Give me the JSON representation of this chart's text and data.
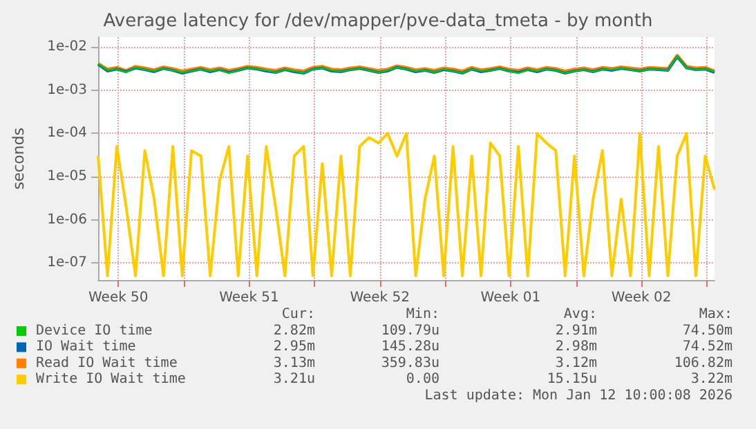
{
  "chart_data": {
    "type": "line",
    "title": "Average latency for /dev/mapper/pve-data_tmeta - by month",
    "ylabel": "seconds",
    "log": "y",
    "grid": true,
    "legend": "bottom left",
    "marker": "none",
    "line_style": "solid",
    "xlim": [
      "2025-12-10T10:00",
      "2026-01-12T10:00"
    ],
    "xticks": [
      {
        "value": "2025-12-11T12:00",
        "label": "Week 50"
      },
      {
        "value": "2025-12-15",
        "label": null
      },
      {
        "value": "2025-12-18T12:00",
        "label": "Week 51"
      },
      {
        "value": "2025-12-22",
        "label": null
      },
      {
        "value": "2025-12-25T12:00",
        "label": "Week 52"
      },
      {
        "value": "2025-12-29",
        "label": null
      },
      {
        "value": "2026-01-01T12:00",
        "label": "Week 01"
      },
      {
        "value": "2026-01-05",
        "label": null
      },
      {
        "value": "2026-01-08T12:00",
        "label": "Week 02"
      },
      {
        "value": "2026-01-12",
        "label": null
      }
    ],
    "ylim": [
      4e-08,
      0.017
    ],
    "yticks": [
      {
        "value": 1e-07,
        "label": "1e-07"
      },
      {
        "value": 1e-06,
        "label": "1e-06"
      },
      {
        "value": 1e-05,
        "label": "1e-05"
      },
      {
        "value": 0.0001,
        "label": "1e-04"
      },
      {
        "value": 0.001,
        "label": "1e-03"
      },
      {
        "value": 0.01,
        "label": "1e-02"
      }
    ],
    "x": [
      "2025-12-10T10:00",
      "2025-12-10T22:00",
      "2025-12-11T10:00",
      "2025-12-11T22:00",
      "2025-12-12T10:00",
      "2025-12-12T22:00",
      "2025-12-13T10:00",
      "2025-12-13T22:00",
      "2025-12-14T10:00",
      "2025-12-14T22:00",
      "2025-12-15T10:00",
      "2025-12-15T22:00",
      "2025-12-16T10:00",
      "2025-12-16T22:00",
      "2025-12-17T10:00",
      "2025-12-17T22:00",
      "2025-12-18T10:00",
      "2025-12-18T22:00",
      "2025-12-19T10:00",
      "2025-12-19T22:00",
      "2025-12-20T10:00",
      "2025-12-20T22:00",
      "2025-12-21T10:00",
      "2025-12-21T22:00",
      "2025-12-22T10:00",
      "2025-12-22T22:00",
      "2025-12-23T10:00",
      "2025-12-23T22:00",
      "2025-12-24T10:00",
      "2025-12-24T22:00",
      "2025-12-25T10:00",
      "2025-12-25T22:00",
      "2025-12-26T10:00",
      "2025-12-26T22:00",
      "2025-12-27T10:00",
      "2025-12-27T22:00",
      "2025-12-28T10:00",
      "2025-12-28T22:00",
      "2025-12-29T10:00",
      "2025-12-29T22:00",
      "2025-12-30T10:00",
      "2025-12-30T22:00",
      "2025-12-31T10:00",
      "2025-12-31T22:00",
      "2026-01-01T10:00",
      "2026-01-01T22:00",
      "2026-01-02T10:00",
      "2026-01-02T22:00",
      "2026-01-03T10:00",
      "2026-01-03T22:00",
      "2026-01-04T10:00",
      "2026-01-04T22:00",
      "2026-01-05T10:00",
      "2026-01-05T22:00",
      "2026-01-06T10:00",
      "2026-01-06T22:00",
      "2026-01-07T10:00",
      "2026-01-07T22:00",
      "2026-01-08T10:00",
      "2026-01-08T22:00",
      "2026-01-09T10:00",
      "2026-01-09T22:00",
      "2026-01-10T10:00",
      "2026-01-10T22:00",
      "2026-01-11T10:00",
      "2026-01-11T22:00",
      "2026-01-12T10:00"
    ],
    "series": [
      {
        "name": "Device IO time",
        "color": "#00cc00",
        "values": [
          0.0041,
          0.0029,
          0.0031,
          0.0026,
          0.0034,
          0.003,
          0.0028,
          0.0032,
          0.0029,
          0.0026,
          0.0028,
          0.0031,
          0.0028,
          0.003,
          0.0025,
          0.0029,
          0.0033,
          0.0031,
          0.0029,
          0.0026,
          0.003,
          0.0028,
          0.0025,
          0.0031,
          0.0033,
          0.0029,
          0.0027,
          0.003,
          0.0032,
          0.0029,
          0.0026,
          0.0029,
          0.0034,
          0.0031,
          0.0028,
          0.0029,
          0.0026,
          0.0031,
          0.0028,
          0.0025,
          0.0031,
          0.0028,
          0.0029,
          0.0032,
          0.0028,
          0.0025,
          0.003,
          0.0028,
          0.0031,
          0.0029,
          0.0025,
          0.0028,
          0.003,
          0.0027,
          0.0031,
          0.003,
          0.0032,
          0.003,
          0.0028,
          0.0031,
          0.003,
          0.0029,
          0.0061,
          0.0033,
          0.003,
          0.0031,
          0.0027
        ]
      },
      {
        "name": "IO Wait time",
        "color": "#0066b3",
        "values": [
          0.004,
          0.0028,
          0.0031,
          0.0027,
          0.0033,
          0.003,
          0.0027,
          0.0032,
          0.0029,
          0.0025,
          0.0028,
          0.0031,
          0.0027,
          0.003,
          0.0026,
          0.0029,
          0.0033,
          0.0031,
          0.0028,
          0.0026,
          0.003,
          0.0027,
          0.0025,
          0.0031,
          0.0033,
          0.0028,
          0.0027,
          0.003,
          0.0032,
          0.0029,
          0.0026,
          0.0028,
          0.0034,
          0.0031,
          0.0027,
          0.0029,
          0.0026,
          0.003,
          0.0028,
          0.0025,
          0.0031,
          0.0027,
          0.0029,
          0.0032,
          0.0028,
          0.0026,
          0.003,
          0.0027,
          0.0031,
          0.0029,
          0.0025,
          0.0028,
          0.003,
          0.0027,
          0.0031,
          0.0029,
          0.0032,
          0.003,
          0.0028,
          0.0031,
          0.003,
          0.0029,
          0.006,
          0.0033,
          0.003,
          0.0031,
          0.0026
        ]
      },
      {
        "name": "Read IO Wait time",
        "color": "#ff8000",
        "values": [
          0.0042,
          0.0031,
          0.0034,
          0.0029,
          0.0036,
          0.0033,
          0.003,
          0.0035,
          0.0032,
          0.0028,
          0.0031,
          0.0034,
          0.003,
          0.0033,
          0.0029,
          0.0032,
          0.0036,
          0.0034,
          0.0031,
          0.0029,
          0.0033,
          0.003,
          0.0028,
          0.0034,
          0.0036,
          0.0031,
          0.003,
          0.0033,
          0.0035,
          0.0032,
          0.0029,
          0.0031,
          0.0037,
          0.0034,
          0.003,
          0.0032,
          0.0029,
          0.0033,
          0.0031,
          0.0028,
          0.0034,
          0.003,
          0.0032,
          0.0035,
          0.0031,
          0.0029,
          0.0033,
          0.003,
          0.0034,
          0.0032,
          0.0028,
          0.0031,
          0.0033,
          0.003,
          0.0034,
          0.0032,
          0.0035,
          0.0033,
          0.0031,
          0.0034,
          0.0033,
          0.0032,
          0.0065,
          0.0036,
          0.0033,
          0.0034,
          0.0028
        ]
      },
      {
        "name": "Write IO Wait time",
        "color": "#ffcc00",
        "values": [
          3e-05,
          5e-08,
          5e-05,
          2e-06,
          5e-08,
          4e-05,
          3e-06,
          5e-08,
          5e-05,
          5e-08,
          4e-05,
          3e-05,
          5e-08,
          8e-06,
          5e-05,
          5e-08,
          3e-05,
          5e-08,
          5e-05,
          2e-06,
          5e-08,
          3e-05,
          5e-05,
          5e-08,
          2e-05,
          5e-08,
          3e-05,
          5e-08,
          5e-05,
          8e-05,
          6e-05,
          0.0001,
          3e-05,
          0.0001,
          5e-08,
          3e-06,
          3e-05,
          5e-08,
          5e-05,
          5e-08,
          3e-05,
          5e-08,
          6e-05,
          3e-05,
          5e-08,
          5e-05,
          5e-08,
          0.0001,
          6e-05,
          4e-05,
          5e-08,
          3e-05,
          5e-08,
          3e-06,
          4e-05,
          5e-08,
          3e-06,
          5e-08,
          0.0001,
          5e-08,
          5e-05,
          5e-08,
          3e-05,
          0.0001,
          5e-08,
          3e-05,
          5e-06
        ]
      }
    ],
    "annotations": [
      "Cur:",
      "Min:",
      "Avg:",
      "Max:",
      "2.82m",
      "109.79u",
      "2.91m",
      "74.50m",
      "2.95m",
      "145.28u",
      "2.98m",
      "74.52m",
      "3.13m",
      "359.83u",
      "3.12m",
      "106.82m",
      "3.21u",
      "0.00",
      "15.15u",
      "3.22m",
      "Last update: Mon Jan 12 10:00:08 2026"
    ]
  }
}
